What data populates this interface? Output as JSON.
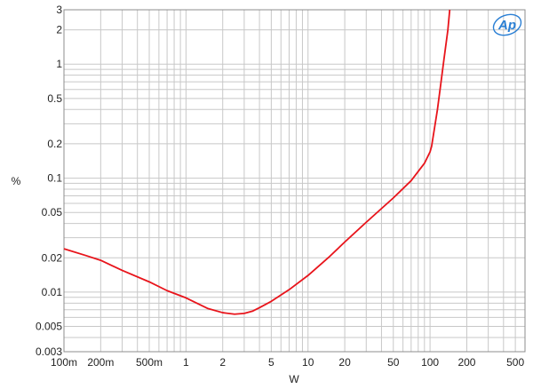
{
  "chart_data": {
    "type": "line",
    "title": "",
    "xlabel": "W",
    "ylabel": "%",
    "xscale": "log",
    "yscale": "log",
    "xlim": [
      0.1,
      600
    ],
    "ylim": [
      0.003,
      3
    ],
    "grid": true,
    "x_ticks": [
      {
        "value": 0.1,
        "label": "100m"
      },
      {
        "value": 0.2,
        "label": "200m"
      },
      {
        "value": 0.5,
        "label": "500m"
      },
      {
        "value": 1,
        "label": "1"
      },
      {
        "value": 2,
        "label": "2"
      },
      {
        "value": 5,
        "label": "5"
      },
      {
        "value": 10,
        "label": "10"
      },
      {
        "value": 20,
        "label": "20"
      },
      {
        "value": 50,
        "label": "50"
      },
      {
        "value": 100,
        "label": "100"
      },
      {
        "value": 200,
        "label": "200"
      },
      {
        "value": 500,
        "label": "500"
      }
    ],
    "y_ticks": [
      {
        "value": 0.003,
        "label": "0.003"
      },
      {
        "value": 0.005,
        "label": "0.005"
      },
      {
        "value": 0.01,
        "label": "0.01"
      },
      {
        "value": 0.02,
        "label": "0.02"
      },
      {
        "value": 0.05,
        "label": "0.05"
      },
      {
        "value": 0.1,
        "label": "0.1"
      },
      {
        "value": 0.2,
        "label": "0.2"
      },
      {
        "value": 0.5,
        "label": "0.5"
      },
      {
        "value": 1,
        "label": "1"
      },
      {
        "value": 2,
        "label": "2"
      },
      {
        "value": 3,
        "label": "3"
      }
    ],
    "series": [
      {
        "color": "#e8141b",
        "points": [
          [
            0.1,
            0.024
          ],
          [
            0.15,
            0.021
          ],
          [
            0.2,
            0.019
          ],
          [
            0.3,
            0.0155
          ],
          [
            0.5,
            0.0123
          ],
          [
            0.7,
            0.0103
          ],
          [
            1,
            0.0089
          ],
          [
            1.5,
            0.0072
          ],
          [
            2,
            0.0066
          ],
          [
            2.5,
            0.0064
          ],
          [
            3,
            0.0065
          ],
          [
            3.5,
            0.0068
          ],
          [
            4,
            0.0073
          ],
          [
            5,
            0.0083
          ],
          [
            7,
            0.0105
          ],
          [
            10,
            0.014
          ],
          [
            15,
            0.0205
          ],
          [
            20,
            0.0275
          ],
          [
            30,
            0.041
          ],
          [
            50,
            0.067
          ],
          [
            70,
            0.095
          ],
          [
            90,
            0.135
          ],
          [
            100,
            0.17
          ],
          [
            103,
            0.19
          ],
          [
            115,
            0.4
          ],
          [
            122,
            0.65
          ],
          [
            130,
            1.1
          ],
          [
            140,
            2.0
          ],
          [
            145,
            3.0
          ]
        ]
      }
    ]
  },
  "logo": {
    "text": "Ap",
    "color": "#2a7fd4"
  }
}
